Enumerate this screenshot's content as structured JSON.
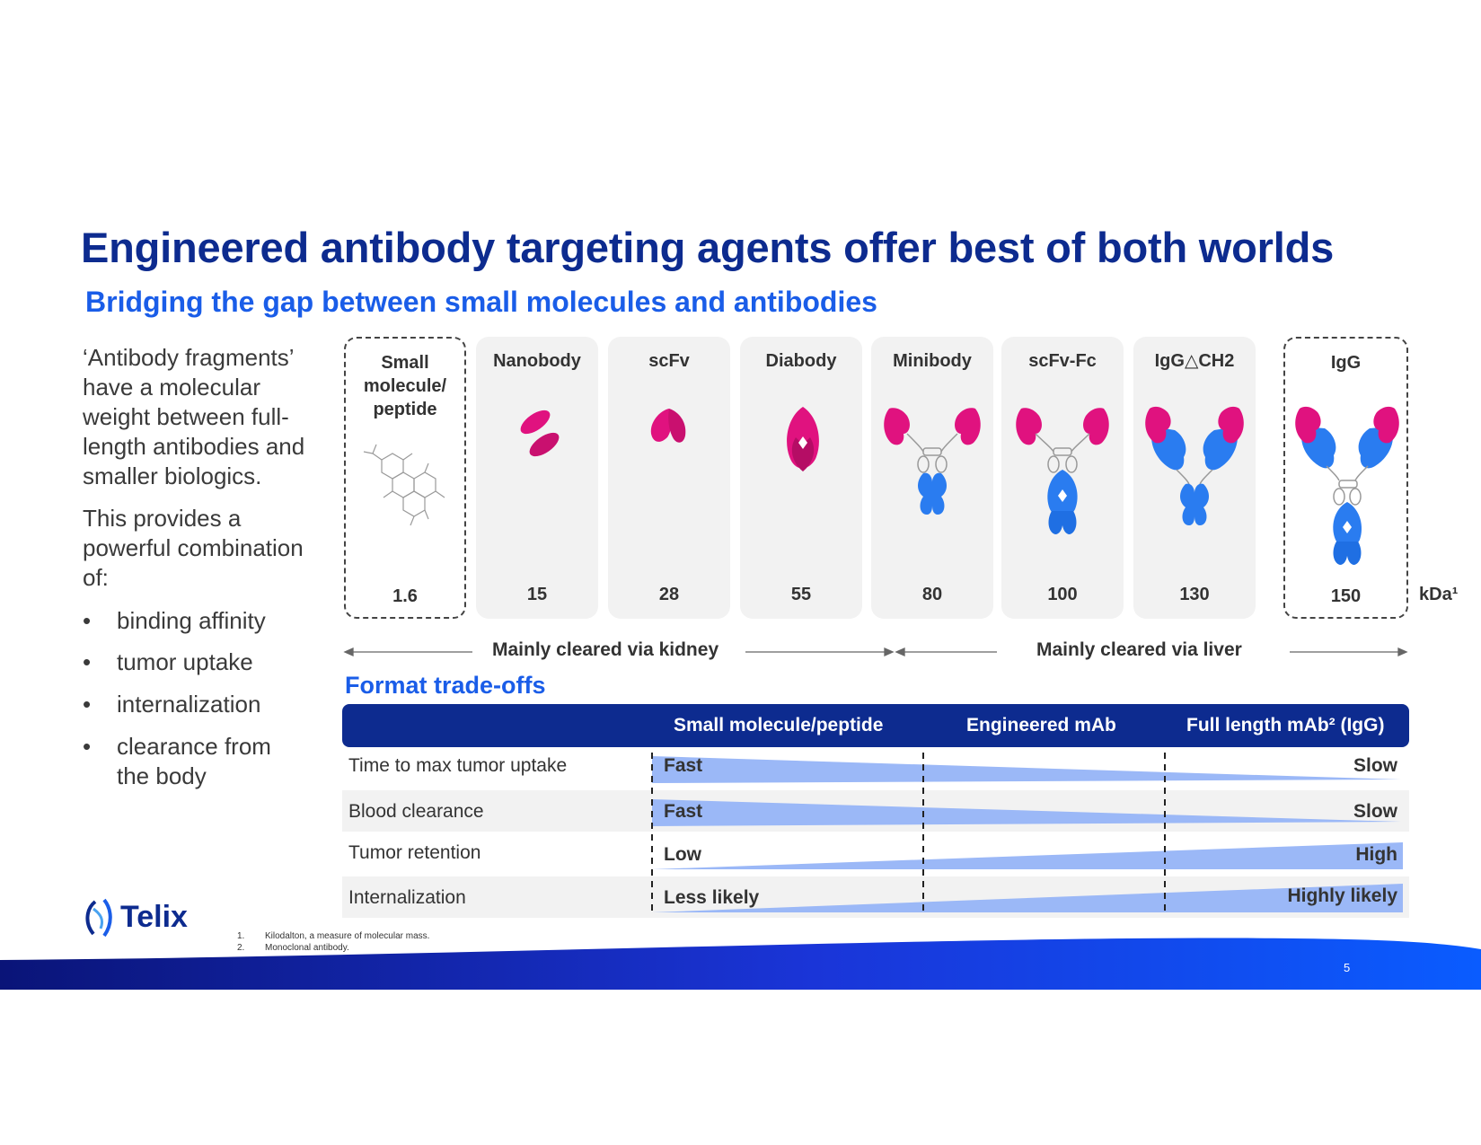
{
  "title": "Engineered antibody targeting agents offer best of both worlds",
  "subtitle": "Bridging the gap between small molecules and antibodies",
  "intro": "‘Antibody fragments’ have a molecular weight between full-length antibodies and smaller biologics.",
  "intro2": "This provides a powerful combination of:",
  "bullets": [
    "binding affinity",
    "tumor uptake",
    "internalization",
    "clearance from the body"
  ],
  "formats": [
    {
      "name": "Small molecule/ peptide",
      "kda": "1.6"
    },
    {
      "name": "Nanobody",
      "kda": "15"
    },
    {
      "name": "scFv",
      "kda": "28"
    },
    {
      "name": "Diabody",
      "kda": "55"
    },
    {
      "name": "Minibody",
      "kda": "80"
    },
    {
      "name": "scFv-Fc",
      "kda": "100"
    },
    {
      "name": "IgG△CH2",
      "kda": "130"
    },
    {
      "name": "IgG",
      "kda": "150"
    }
  ],
  "kda_unit": "kDa¹",
  "clearance": {
    "kidney": "Mainly cleared via kidney",
    "liver": "Mainly cleared via liver"
  },
  "tradeoffs_title": "Format trade-offs",
  "table": {
    "headers": [
      "Small molecule/peptide",
      "Engineered mAb",
      "Full length mAb² (IgG)"
    ],
    "rows": [
      {
        "label": "Time to max tumor uptake",
        "left": "Fast",
        "right": "Slow"
      },
      {
        "label": "Blood clearance",
        "left": "Fast",
        "right": "Slow"
      },
      {
        "label": "Tumor retention",
        "left": "Low",
        "right": "High"
      },
      {
        "label": "Internalization",
        "left": "Less likely",
        "right": "Highly likely"
      }
    ]
  },
  "logo_text": "Telix",
  "footnotes": [
    {
      "num": "1.",
      "text": "Kilodalton, a measure of molecular mass."
    },
    {
      "num": "2.",
      "text": "Monoclonal antibody."
    }
  ],
  "page_number": "5",
  "colors": {
    "navy": "#0d2b8f",
    "blue": "#1a5de8",
    "magenta": "#e0127f",
    "antibody_blue": "#2a7cf0",
    "wedge": "#9bb8f7"
  }
}
